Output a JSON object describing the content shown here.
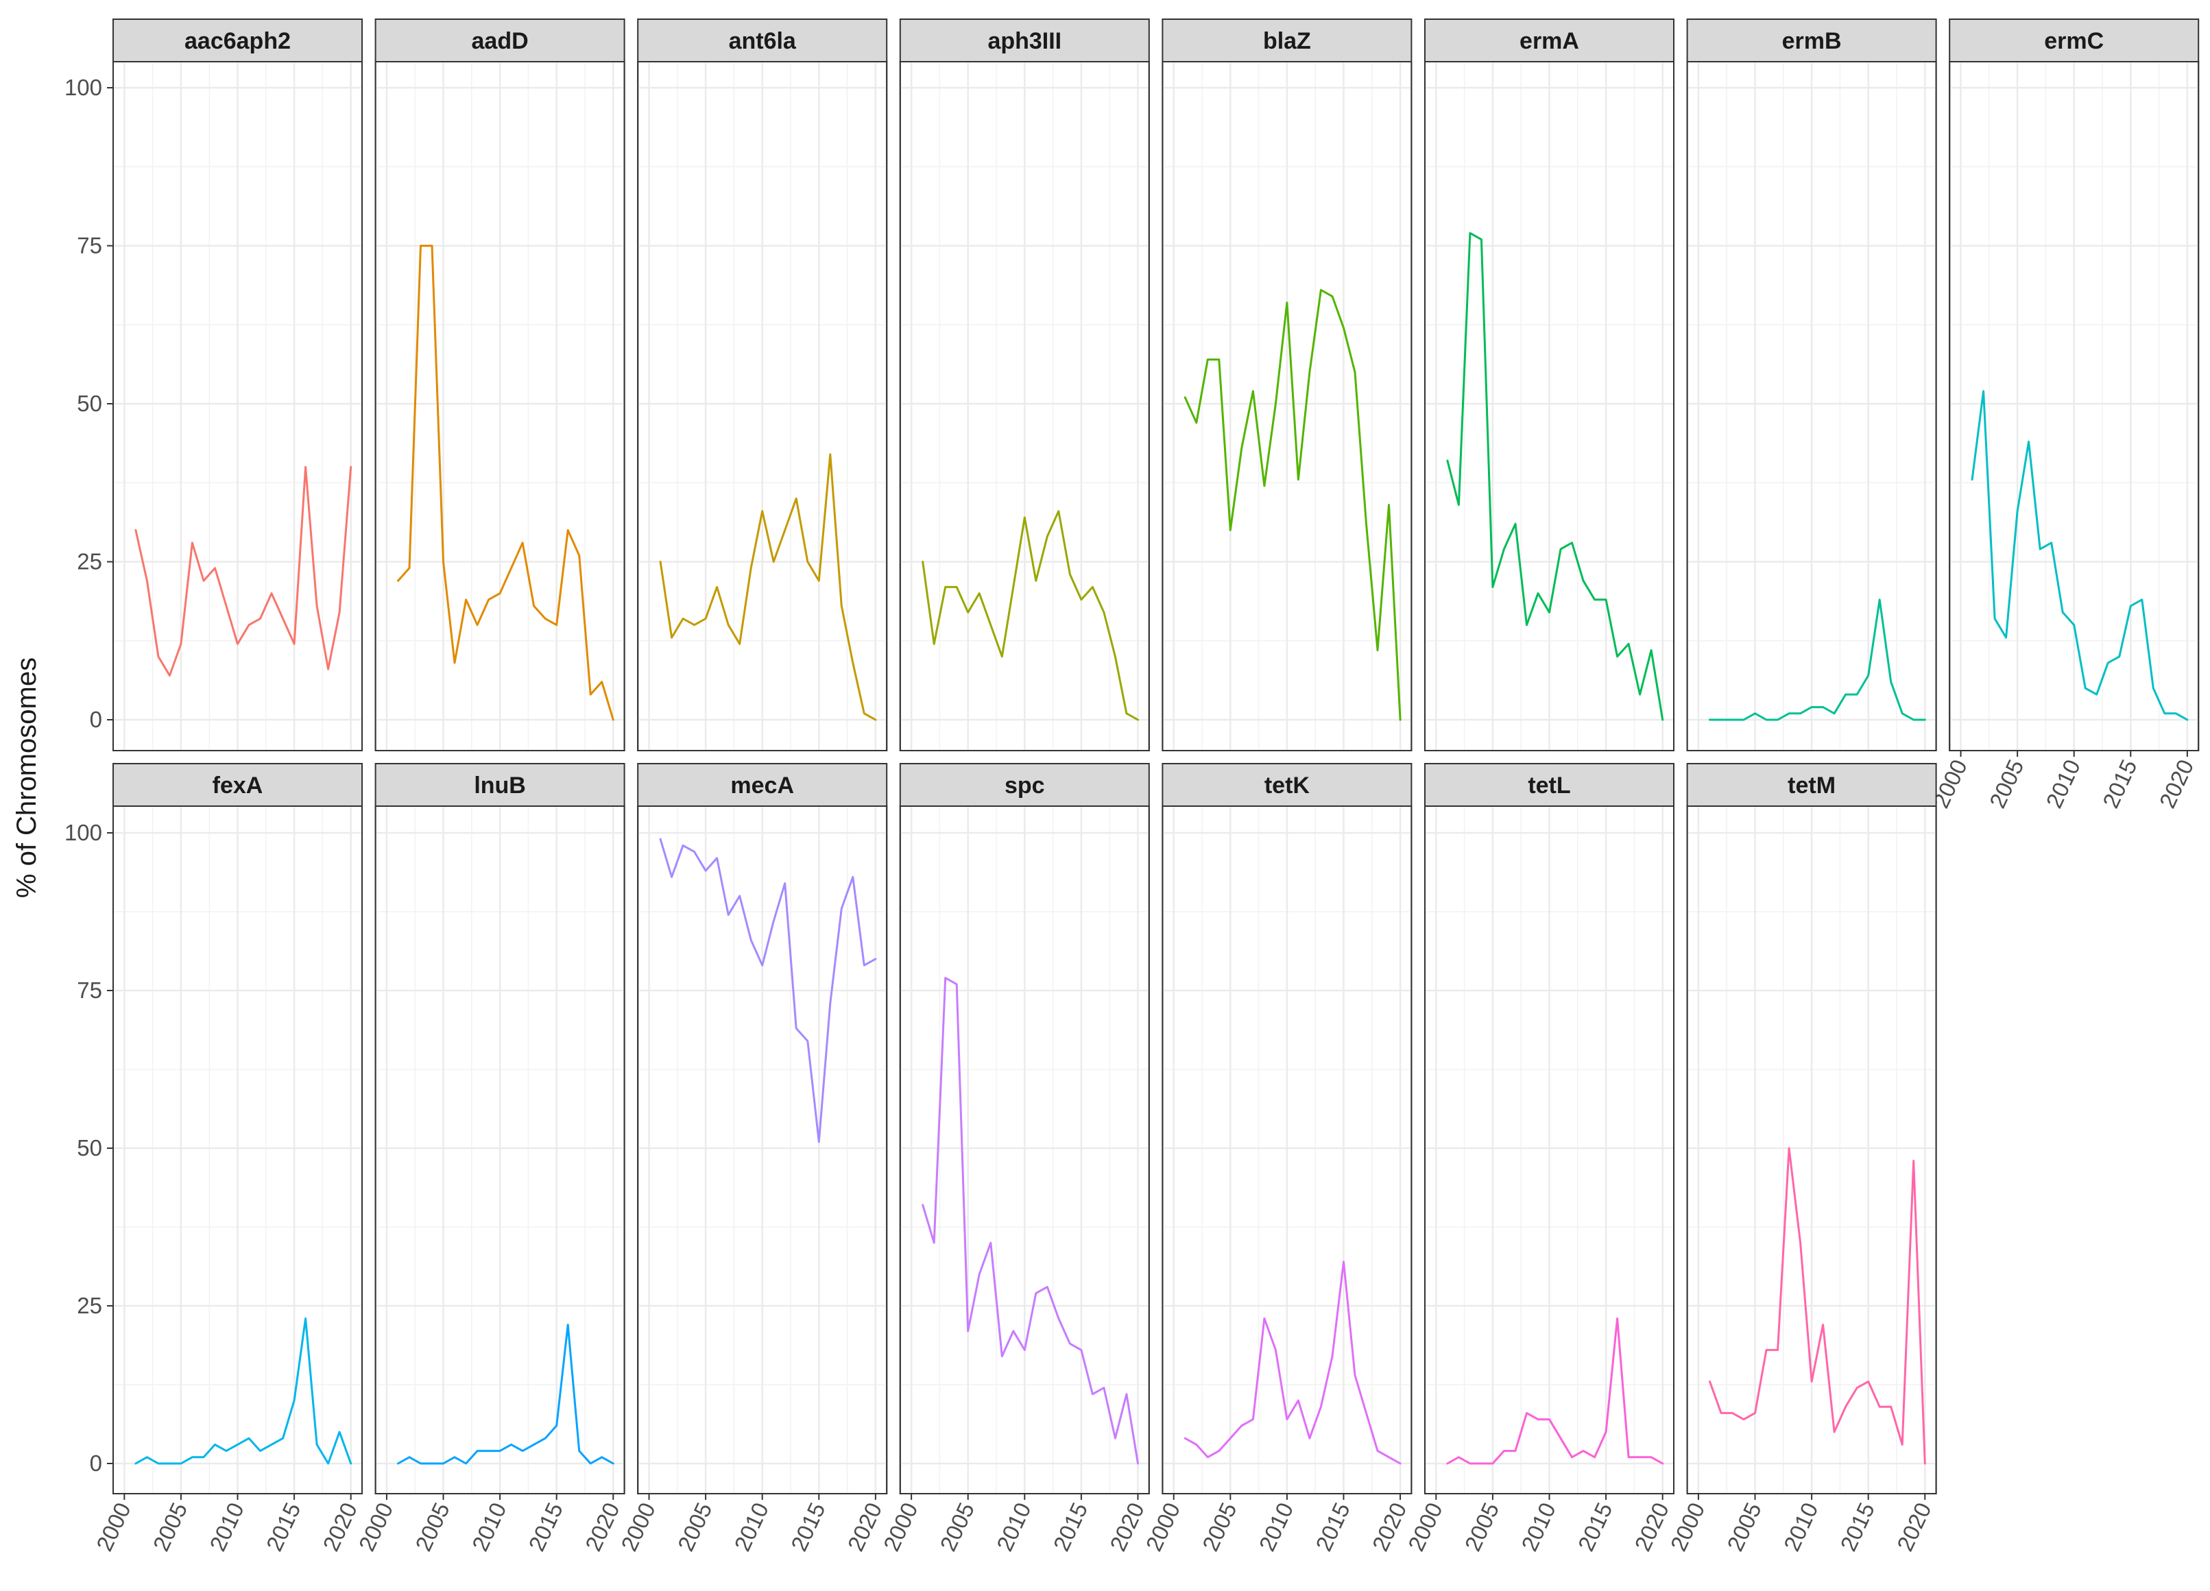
{
  "chart_data": {
    "type": "line",
    "facet_layout": "wrap",
    "ylabel": "% of Chromosomes",
    "xlabel": "",
    "ylim": [
      0,
      100
    ],
    "xlim": [
      2000,
      2020
    ],
    "yticks": [
      0,
      25,
      50,
      75,
      100
    ],
    "xticks": [
      2000,
      2005,
      2010,
      2015,
      2020
    ],
    "ytick_labels": [
      "0",
      "25",
      "50",
      "75",
      "100"
    ],
    "xtick_labels": [
      "2000",
      "2005",
      "2010",
      "2015",
      "2020"
    ],
    "grid": true,
    "legend": "none",
    "x": [
      2001,
      2002,
      2003,
      2004,
      2005,
      2006,
      2007,
      2008,
      2009,
      2010,
      2011,
      2012,
      2013,
      2014,
      2015,
      2016,
      2017,
      2018,
      2019,
      2020
    ],
    "series": [
      {
        "name": "aac6aph2",
        "color": "#F8766D",
        "values": [
          30,
          22,
          10,
          7,
          12,
          28,
          22,
          24,
          18,
          12,
          15,
          16,
          20,
          16,
          12,
          40,
          18,
          8,
          17,
          40
        ]
      },
      {
        "name": "aadD",
        "color": "#E18A00",
        "values": [
          22,
          24,
          75,
          75,
          25,
          9,
          19,
          15,
          19,
          20,
          24,
          28,
          18,
          16,
          15,
          30,
          26,
          4,
          6,
          0
        ]
      },
      {
        "name": "ant6la",
        "color": "#C49A00",
        "values": [
          25,
          13,
          16,
          15,
          16,
          21,
          15,
          12,
          24,
          33,
          25,
          30,
          35,
          25,
          22,
          42,
          18,
          9,
          1,
          0
        ]
      },
      {
        "name": "aph3III",
        "color": "#99A800",
        "values": [
          25,
          12,
          21,
          21,
          17,
          20,
          15,
          10,
          21,
          32,
          22,
          29,
          33,
          23,
          19,
          21,
          17,
          10,
          1,
          0
        ]
      },
      {
        "name": "blaZ",
        "color": "#53B400",
        "values": [
          51,
          47,
          57,
          57,
          30,
          43,
          52,
          37,
          50,
          66,
          38,
          55,
          68,
          67,
          62,
          55,
          31,
          11,
          34,
          0
        ]
      },
      {
        "name": "ermA",
        "color": "#00BC56",
        "values": [
          41,
          34,
          77,
          76,
          21,
          27,
          31,
          15,
          20,
          17,
          27,
          28,
          22,
          19,
          19,
          10,
          12,
          4,
          11,
          0
        ]
      },
      {
        "name": "ermB",
        "color": "#00C094",
        "values": [
          0,
          0,
          0,
          0,
          1,
          0,
          0,
          1,
          1,
          2,
          2,
          1,
          4,
          4,
          7,
          19,
          6,
          1,
          0,
          0
        ]
      },
      {
        "name": "ermC",
        "color": "#00BFC4",
        "values": [
          38,
          52,
          16,
          13,
          33,
          44,
          27,
          28,
          17,
          15,
          5,
          4,
          9,
          10,
          18,
          19,
          5,
          1,
          1,
          0
        ]
      },
      {
        "name": "fexA",
        "color": "#00B6EB",
        "values": [
          0,
          1,
          0,
          0,
          0,
          1,
          1,
          3,
          2,
          3,
          4,
          2,
          3,
          4,
          10,
          23,
          3,
          0,
          5,
          0
        ]
      },
      {
        "name": "lnuB",
        "color": "#06A4FF",
        "values": [
          0,
          1,
          0,
          0,
          0,
          1,
          0,
          2,
          2,
          2,
          3,
          2,
          3,
          4,
          6,
          22,
          2,
          0,
          1,
          0
        ]
      },
      {
        "name": "mecA",
        "color": "#A58AFF",
        "values": [
          99,
          93,
          98,
          97,
          94,
          96,
          87,
          90,
          83,
          79,
          86,
          92,
          69,
          67,
          51,
          73,
          88,
          93,
          79,
          80
        ]
      },
      {
        "name": "spc",
        "color": "#C77CFF",
        "values": [
          41,
          35,
          77,
          76,
          21,
          30,
          35,
          17,
          21,
          18,
          27,
          28,
          23,
          19,
          18,
          11,
          12,
          4,
          11,
          0
        ]
      },
      {
        "name": "tetK",
        "color": "#DF70F8",
        "values": [
          4,
          3,
          1,
          2,
          4,
          6,
          7,
          23,
          18,
          7,
          10,
          4,
          9,
          17,
          32,
          14,
          8,
          2,
          1,
          0
        ]
      },
      {
        "name": "tetL",
        "color": "#FB61D7",
        "values": [
          0,
          1,
          0,
          0,
          0,
          2,
          2,
          8,
          7,
          7,
          4,
          1,
          2,
          1,
          5,
          23,
          1,
          1,
          1,
          0
        ]
      },
      {
        "name": "tetM",
        "color": "#FF66A8",
        "values": [
          13,
          8,
          8,
          7,
          8,
          18,
          18,
          50,
          35,
          13,
          22,
          5,
          9,
          12,
          13,
          9,
          9,
          3,
          48,
          0
        ]
      }
    ]
  }
}
